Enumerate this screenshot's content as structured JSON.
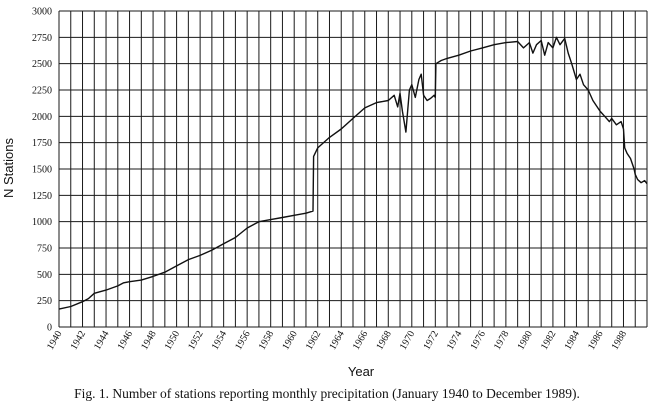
{
  "caption": "Fig. 1. Number of stations reporting monthly precipitation (January 1940 to December 1989).",
  "chart_data": {
    "type": "line",
    "title": "",
    "xlabel": "Year",
    "ylabel": "N Stations",
    "xlim": [
      1940,
      1990
    ],
    "ylim": [
      0,
      3000
    ],
    "grid": true,
    "xticks": [
      "1940",
      "1942",
      "1944",
      "1946",
      "1948",
      "1950",
      "1952",
      "1954",
      "1956",
      "1958",
      "1960",
      "1962",
      "1964",
      "1966",
      "1968",
      "1970",
      "1972",
      "1974",
      "1976",
      "1978",
      "1980",
      "1982",
      "1984",
      "1986",
      "1988"
    ],
    "yticks": [
      "0",
      "250",
      "500",
      "750",
      "1000",
      "1250",
      "1500",
      "1750",
      "2000",
      "2250",
      "2500",
      "2750",
      "3000"
    ],
    "series": [
      {
        "name": "",
        "x": [
          1940.0,
          1941.0,
          1942.0,
          1942.5,
          1943.0,
          1944.0,
          1945.0,
          1945.5,
          1946.0,
          1947.0,
          1948.0,
          1949.0,
          1950.0,
          1951.0,
          1952.0,
          1953.0,
          1954.0,
          1955.0,
          1956.0,
          1957.0,
          1958.0,
          1959.0,
          1960.0,
          1961.0,
          1961.6,
          1961.65,
          1962.0,
          1963.0,
          1964.0,
          1965.0,
          1966.0,
          1967.0,
          1968.0,
          1968.5,
          1968.8,
          1969.0,
          1969.2,
          1969.5,
          1969.8,
          1970.0,
          1970.3,
          1970.6,
          1970.8,
          1971.0,
          1971.3,
          1971.6,
          1971.9,
          1972.0,
          1972.05,
          1972.5,
          1973.0,
          1974.0,
          1975.0,
          1976.0,
          1977.0,
          1978.0,
          1979.0,
          1979.5,
          1980.0,
          1980.3,
          1980.6,
          1981.0,
          1981.3,
          1981.6,
          1982.0,
          1982.3,
          1982.6,
          1983.0,
          1983.3,
          1983.6,
          1984.0,
          1984.3,
          1984.6,
          1985.0,
          1985.4,
          1985.7,
          1986.0,
          1986.4,
          1986.8,
          1987.0,
          1987.4,
          1987.8,
          1988.0,
          1988.1,
          1988.3,
          1988.6,
          1988.9,
          1989.0,
          1989.2,
          1989.5,
          1989.8,
          1990.0
        ],
        "y": [
          170,
          195,
          240,
          270,
          320,
          350,
          390,
          420,
          430,
          445,
          480,
          520,
          580,
          640,
          680,
          730,
          790,
          850,
          940,
          1000,
          1020,
          1040,
          1060,
          1080,
          1100,
          1620,
          1700,
          1800,
          1880,
          1980,
          2080,
          2130,
          2150,
          2200,
          2090,
          2220,
          2050,
          1850,
          2250,
          2300,
          2180,
          2350,
          2400,
          2200,
          2150,
          2170,
          2200,
          2180,
          2500,
          2530,
          2550,
          2580,
          2620,
          2650,
          2680,
          2700,
          2710,
          2650,
          2700,
          2600,
          2680,
          2720,
          2580,
          2700,
          2650,
          2750,
          2680,
          2740,
          2600,
          2500,
          2350,
          2400,
          2300,
          2250,
          2150,
          2100,
          2050,
          2000,
          1950,
          1980,
          1920,
          1950,
          1880,
          1700,
          1650,
          1600,
          1500,
          1450,
          1400,
          1370,
          1390,
          1360
        ]
      }
    ]
  }
}
